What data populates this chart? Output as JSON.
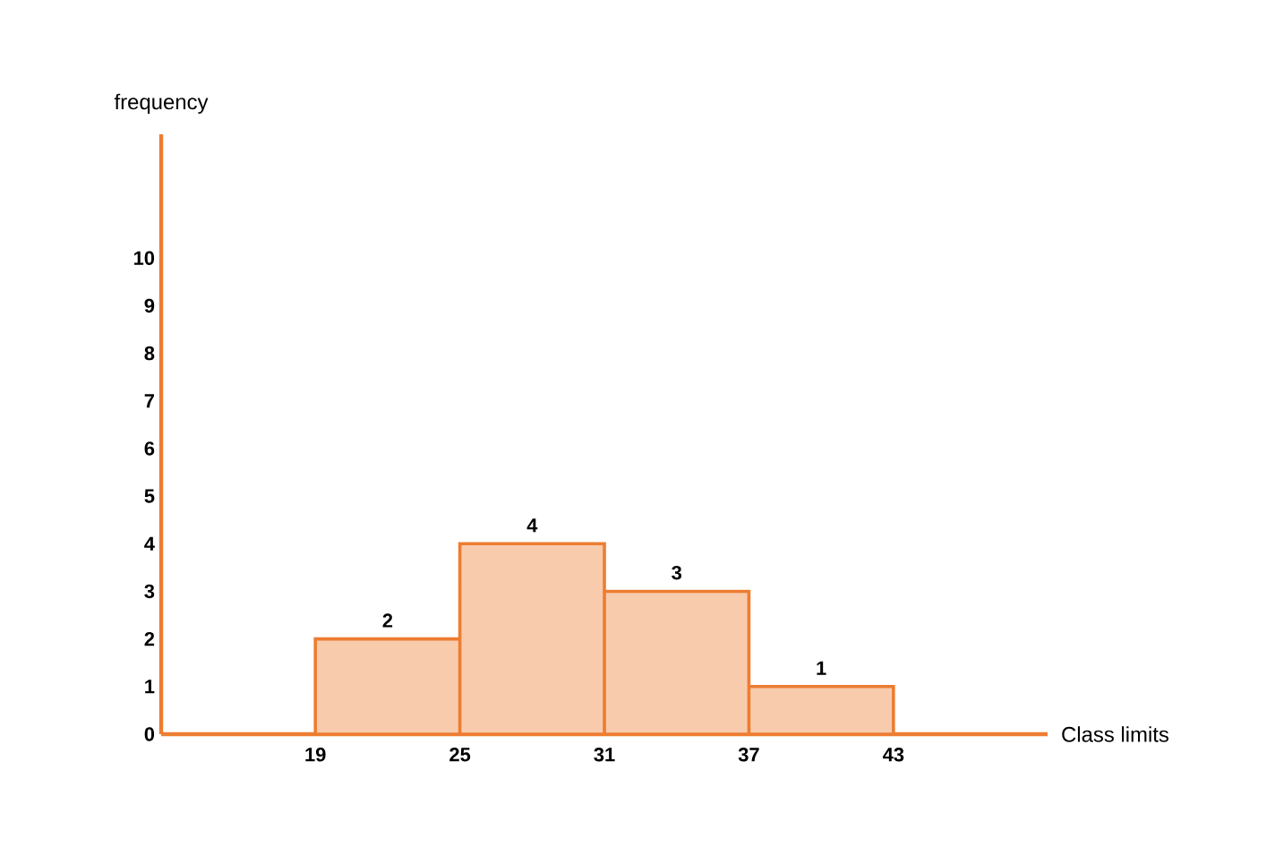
{
  "chart_data": {
    "type": "histogram",
    "xlabel": "Class limits",
    "ylabel": "frequency",
    "bins": [
      19,
      25,
      31,
      37,
      43
    ],
    "values": [
      2,
      4,
      3,
      1
    ],
    "color": "#f8cbad",
    "xlim": [
      12.6,
      49.4
    ],
    "ylim": [
      0,
      12.6
    ],
    "xticks": [
      19,
      25,
      31,
      37,
      43
    ],
    "yticks": [
      0,
      1,
      2,
      3,
      4,
      5,
      6,
      7,
      8,
      9,
      10
    ],
    "data_labels": true
  }
}
